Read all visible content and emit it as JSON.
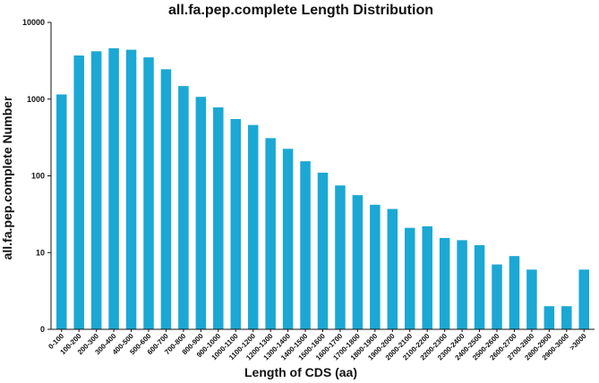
{
  "chart_data": {
    "type": "bar",
    "title": "all.fa.pep.complete Length Distribution",
    "xlabel": "Length of CDS (aa)",
    "ylabel": "all.fa.pep.complete Number",
    "y_scale": "log",
    "ylim": [
      1,
      10000
    ],
    "y_ticks": [
      {
        "value": 1,
        "label": "0"
      },
      {
        "value": 10,
        "label": "10"
      },
      {
        "value": 100,
        "label": "100"
      },
      {
        "value": 1000,
        "label": "1000"
      },
      {
        "value": 10000,
        "label": "10000"
      }
    ],
    "bar_color": "#1BA8D4",
    "categories": [
      "0-100",
      "100-200",
      "200-300",
      "300-400",
      "400-500",
      "500-600",
      "600-700",
      "700-800",
      "800-900",
      "900-1000",
      "1000-1100",
      "1100-1200",
      "1200-1300",
      "1300-1400",
      "1400-1500",
      "1500-1600",
      "1600-1700",
      "1700-1800",
      "1800-1900",
      "1900-2000",
      "2000-2100",
      "2100-2200",
      "2200-2300",
      "2300-2400",
      "2400-2500",
      "2500-2600",
      "2600-2700",
      "2700-2800",
      "2800-2900",
      "2900-3000",
      ">3000"
    ],
    "values": [
      1150,
      3700,
      4200,
      4600,
      4400,
      3500,
      2450,
      1480,
      1070,
      780,
      550,
      460,
      310,
      225,
      155,
      110,
      75,
      56,
      42,
      37,
      21,
      22,
      15.5,
      14.5,
      12.5,
      7,
      9,
      6,
      2,
      2,
      6
    ]
  }
}
